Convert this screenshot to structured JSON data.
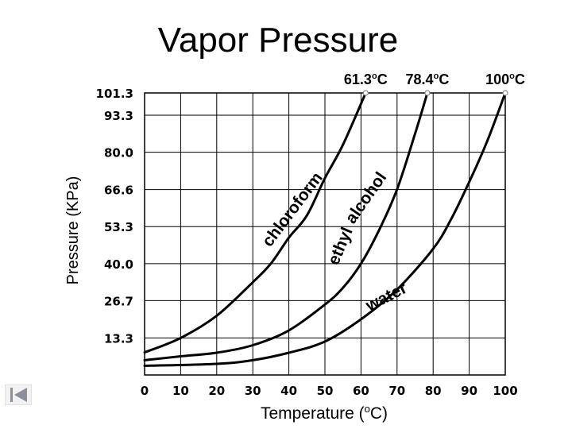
{
  "chart_data": {
    "type": "line",
    "title": "Vapor Pressure",
    "xlabel": "Temperature (oC)",
    "ylabel": "Pressure (KPa)",
    "xlim": [
      0,
      100
    ],
    "ylim": [
      0,
      101.3
    ],
    "x_ticks": [
      0,
      10,
      20,
      30,
      40,
      50,
      60,
      70,
      80,
      90,
      100
    ],
    "x_tick_labels": [
      "0",
      "10",
      "20",
      "30",
      "40",
      "50",
      "60",
      "70",
      "80",
      "90",
      "100"
    ],
    "y_ticks": [
      13.3,
      26.7,
      40.0,
      53.3,
      66.6,
      80.0,
      93.3,
      101.3
    ],
    "y_tick_labels": [
      "13.3",
      "26.7",
      "40.0",
      "53.3",
      "66.6",
      "80.0",
      "93.3",
      "101.3"
    ],
    "grid": true,
    "series": [
      {
        "name": "chloroform",
        "color": "#000000",
        "x": [
          0,
          10,
          20,
          30,
          35,
          40,
          45,
          50,
          55,
          61.3
        ],
        "y": [
          8.1,
          13.3,
          21.3,
          33.3,
          40.0,
          49.3,
          57.3,
          70.7,
          82.7,
          101.3
        ]
      },
      {
        "name": "ethyl alcohol",
        "color": "#000000",
        "x": [
          0,
          10,
          20,
          30,
          40,
          50,
          55,
          60,
          65,
          70,
          75,
          78.4
        ],
        "y": [
          5.3,
          6.7,
          8.0,
          10.7,
          16.0,
          25.3,
          31.3,
          40.0,
          52.0,
          66.7,
          86.7,
          101.3
        ]
      },
      {
        "name": "water",
        "color": "#000000",
        "x": [
          0,
          20,
          30,
          40,
          50,
          60,
          70,
          80,
          85,
          90,
          95,
          100
        ],
        "y": [
          3.3,
          4.0,
          5.3,
          8.0,
          12.0,
          20.0,
          30.7,
          45.3,
          56.0,
          69.3,
          84.0,
          101.3
        ]
      }
    ],
    "annotations": [
      {
        "text": "61.3oC",
        "at_x": 61.3
      },
      {
        "text": "78.4oC",
        "at_x": 78.4
      },
      {
        "text": "100oC",
        "at_x": 100
      }
    ],
    "curve_labels": {
      "chloroform": "chloroform",
      "ethyl": "ethyl",
      "alcohol": "alcohol",
      "water": "water"
    }
  },
  "navigation": {
    "back_icon": "first-slide-icon"
  }
}
